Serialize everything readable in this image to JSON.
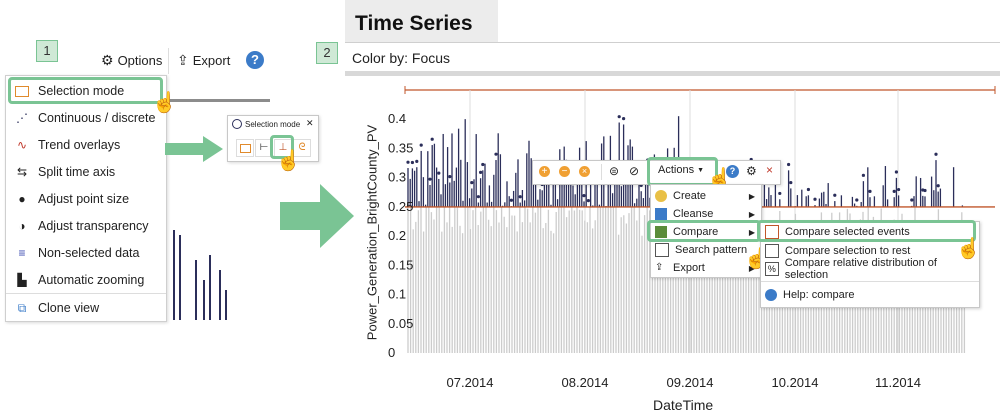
{
  "steps": {
    "one": "1",
    "two": "2"
  },
  "left_toolbar": {
    "options_label": "Options",
    "export_label": "Export",
    "help_label": "?"
  },
  "left_menu": {
    "items": [
      {
        "label": "Selection mode",
        "icon": "rectangle-select-icon"
      },
      {
        "label": "Continuous / discrete",
        "icon": "dots-line-icon"
      },
      {
        "label": "Trend overlays",
        "icon": "trend-icon"
      },
      {
        "label": "Split time axis",
        "icon": "split-axis-icon"
      },
      {
        "label": "Adjust point size",
        "icon": "point-size-icon"
      },
      {
        "label": "Adjust transparency",
        "icon": "transparency-icon"
      },
      {
        "label": "Non-selected data",
        "icon": "non-selected-icon"
      },
      {
        "label": "Automatic zooming",
        "icon": "auto-zoom-icon"
      },
      {
        "label": "Clone view",
        "icon": "clone-icon"
      }
    ]
  },
  "selection_popup": {
    "title": "Selection mode",
    "close": "✕"
  },
  "right_panel": {
    "title": "Time Series",
    "color_by": "Color by: Focus"
  },
  "chart_data": {
    "type": "scatter",
    "ylabel": "Power_Generation_BrightCounty_PV",
    "xlabel": "DateTime",
    "y_ticks": [
      "0.4",
      "0.35",
      "0.3",
      "0.25",
      "0.2",
      "0.15",
      "0.1",
      "0.05",
      "0"
    ],
    "x_ticks": [
      "07.2014",
      "08.2014",
      "09.2014",
      "10.2014",
      "11.2014"
    ],
    "ylim": [
      0,
      0.45
    ],
    "threshold": 0.25,
    "colors": {
      "selected": "#2b2e5a",
      "nonselected": "#cccccc",
      "threshold_line": "#c0562a"
    }
  },
  "context_toolbar": {
    "actions_label": "Actions"
  },
  "actions_menu": {
    "items": [
      {
        "label": "Create",
        "icon": "create-icon"
      },
      {
        "label": "Cleanse",
        "icon": "cleanse-icon"
      },
      {
        "label": "Compare",
        "icon": "compare-icon"
      },
      {
        "label": "Search pattern",
        "icon": "search-pattern-icon"
      },
      {
        "label": "Export",
        "icon": "export-icon"
      }
    ]
  },
  "compare_menu": {
    "items": [
      {
        "label": "Compare selected events"
      },
      {
        "label": "Compare selection to rest"
      },
      {
        "label": "Compare relative distribution of selection"
      },
      {
        "label": "Help: compare"
      }
    ]
  },
  "colors": {
    "highlight": "#7ac494",
    "arrow": "#7ac494"
  }
}
